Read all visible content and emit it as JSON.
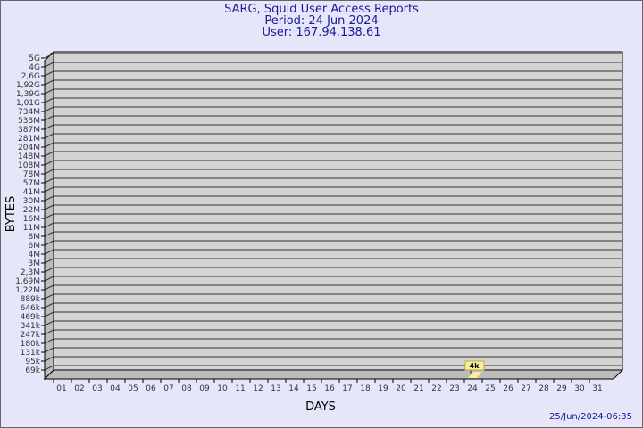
{
  "header": {
    "title": "SARG, Squid User Access Reports",
    "period": "Period: 24 Jun 2024",
    "user": "User: 167.94.138.61"
  },
  "footer": {
    "timestamp": "25/Jun/2024-06:35"
  },
  "colors": {
    "background": "#e6e6fa",
    "plot": "#d3d3d3",
    "title": "#1a1a99",
    "bar": "#ffeb99",
    "label_box": "#f5f0a0"
  },
  "chart_data": {
    "type": "bar",
    "title": "SARG, Squid User Access Reports",
    "xlabel": "DAYS",
    "ylabel": "BYTES",
    "y_scale": "log",
    "grid": true,
    "categories": [
      "01",
      "02",
      "03",
      "04",
      "05",
      "06",
      "07",
      "08",
      "09",
      "10",
      "11",
      "12",
      "13",
      "14",
      "15",
      "16",
      "17",
      "18",
      "19",
      "20",
      "21",
      "22",
      "23",
      "24",
      "25",
      "26",
      "27",
      "28",
      "29",
      "30",
      "31"
    ],
    "y_ticks": [
      "5G",
      "4G",
      "2,6G",
      "1,92G",
      "1,39G",
      "1,01G",
      "734M",
      "533M",
      "387M",
      "281M",
      "204M",
      "148M",
      "108M",
      "78M",
      "57M",
      "41M",
      "30M",
      "22M",
      "16M",
      "11M",
      "8M",
      "6M",
      "4M",
      "3M",
      "2,3M",
      "1,69M",
      "1,22M",
      "889k",
      "646k",
      "469k",
      "341k",
      "247k",
      "180k",
      "131k",
      "95k",
      "69k"
    ],
    "values": [
      null,
      null,
      null,
      null,
      null,
      null,
      null,
      null,
      null,
      null,
      null,
      null,
      null,
      null,
      null,
      null,
      null,
      null,
      null,
      null,
      null,
      null,
      null,
      4000,
      null,
      null,
      null,
      null,
      null,
      null,
      null
    ],
    "data_labels": {
      "24": "4k"
    }
  }
}
